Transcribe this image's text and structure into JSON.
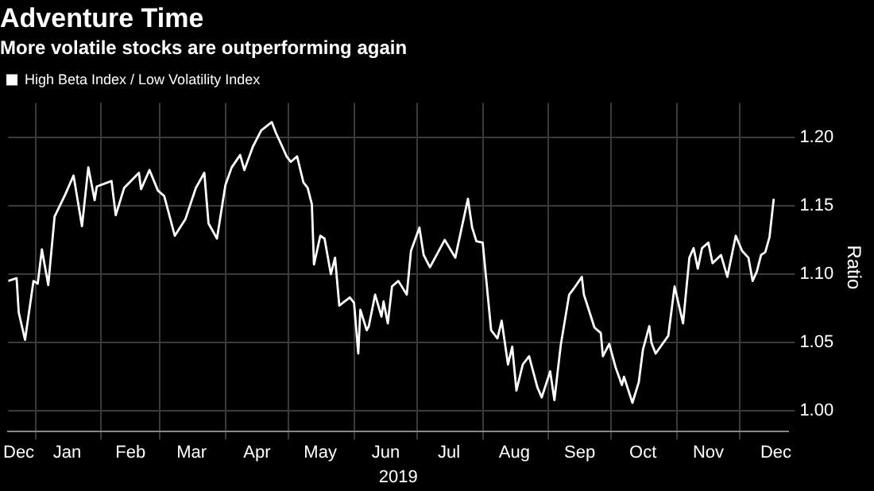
{
  "chart_data": {
    "type": "line",
    "title": "Adventure Time",
    "subtitle": "More volatile stocks are outperforming again",
    "xlabel": "2019",
    "ylabel": "Ratio",
    "xlim": [
      "2018-12-19",
      "2019-12-24"
    ],
    "xticks": [
      {
        "value": "2018-12-24",
        "label": "Dec"
      },
      {
        "value": "2019-01-01",
        "label": null
      },
      {
        "value": "2019-01-16",
        "label": "Jan"
      },
      {
        "value": "2019-02-01",
        "label": null
      },
      {
        "value": "2019-02-15",
        "label": "Feb"
      },
      {
        "value": "2019-03-01",
        "label": null
      },
      {
        "value": "2019-03-16",
        "label": "Mar"
      },
      {
        "value": "2019-04-01",
        "label": null
      },
      {
        "value": "2019-04-16",
        "label": "Apr"
      },
      {
        "value": "2019-05-01",
        "label": null
      },
      {
        "value": "2019-05-16",
        "label": "May"
      },
      {
        "value": "2019-06-01",
        "label": null
      },
      {
        "value": "2019-06-16",
        "label": "Jun"
      },
      {
        "value": "2019-07-01",
        "label": null
      },
      {
        "value": "2019-07-16",
        "label": "Jul"
      },
      {
        "value": "2019-08-01",
        "label": null
      },
      {
        "value": "2019-08-16",
        "label": "Aug"
      },
      {
        "value": "2019-09-01",
        "label": null
      },
      {
        "value": "2019-09-16",
        "label": "Sep"
      },
      {
        "value": "2019-10-01",
        "label": null
      },
      {
        "value": "2019-10-16",
        "label": "Oct"
      },
      {
        "value": "2019-11-01",
        "label": null
      },
      {
        "value": "2019-11-16",
        "label": "Nov"
      },
      {
        "value": "2019-12-01",
        "label": null
      },
      {
        "value": "2019-12-18",
        "label": "Dec"
      }
    ],
    "ylim": [
      0.985,
      1.225
    ],
    "yticks": [
      {
        "value": 1,
        "label": "1.00"
      },
      {
        "value": 1.05,
        "label": "1.05"
      },
      {
        "value": 1.1,
        "label": "1.10"
      },
      {
        "value": 1.15,
        "label": "1.15"
      },
      {
        "value": 1.2,
        "label": "1.20"
      }
    ],
    "grid": true,
    "legend": "top left",
    "series": [
      {
        "name": "High Beta Index / Low Volatility Index",
        "color": "#ffffff",
        "x": [
          "2018-12-19",
          "2018-12-23",
          "2018-12-24",
          "2018-12-27",
          "2018-12-31",
          "2019-01-02",
          "2019-01-04",
          "2019-01-07",
          "2019-01-10",
          "2019-01-15",
          "2019-01-19",
          "2019-01-23",
          "2019-01-26",
          "2019-01-29",
          "2019-01-30",
          "2019-02-06",
          "2019-02-08",
          "2019-02-12",
          "2019-02-19",
          "2019-02-20",
          "2019-02-24",
          "2019-02-28",
          "2019-03-03",
          "2019-03-08",
          "2019-03-13",
          "2019-03-18",
          "2019-03-22",
          "2019-03-24",
          "2019-03-28",
          "2019-04-01",
          "2019-04-04",
          "2019-04-08",
          "2019-04-10",
          "2019-04-14",
          "2019-04-18",
          "2019-04-23",
          "2019-04-25",
          "2019-04-28",
          "2019-04-30",
          "2019-05-02",
          "2019-05-05",
          "2019-05-08",
          "2019-05-10",
          "2019-05-12",
          "2019-05-13",
          "2019-05-16",
          "2019-05-18",
          "2019-05-21",
          "2019-05-23",
          "2019-05-25",
          "2019-05-30",
          "2019-06-01",
          "2019-06-03",
          "2019-06-04",
          "2019-06-07",
          "2019-06-08",
          "2019-06-11",
          "2019-06-14",
          "2019-06-15",
          "2019-06-17",
          "2019-06-19",
          "2019-06-22",
          "2019-06-26",
          "2019-06-28",
          "2019-07-02",
          "2019-07-04",
          "2019-07-07",
          "2019-07-14",
          "2019-07-19",
          "2019-07-25",
          "2019-07-27",
          "2019-07-29",
          "2019-08-01",
          "2019-08-05",
          "2019-08-08",
          "2019-08-10",
          "2019-08-13",
          "2019-08-15",
          "2019-08-17",
          "2019-08-20",
          "2019-08-23",
          "2019-08-27",
          "2019-08-29",
          "2019-09-02",
          "2019-09-04",
          "2019-09-07",
          "2019-09-11",
          "2019-09-13",
          "2019-09-17",
          "2019-09-18",
          "2019-09-23",
          "2019-09-26",
          "2019-09-27",
          "2019-09-30",
          "2019-10-03",
          "2019-10-06",
          "2019-10-07",
          "2019-10-11",
          "2019-10-14",
          "2019-10-16",
          "2019-10-19",
          "2019-10-20",
          "2019-10-22",
          "2019-10-28",
          "2019-10-31",
          "2019-11-04",
          "2019-11-07",
          "2019-11-09",
          "2019-11-11",
          "2019-11-13",
          "2019-11-16",
          "2019-11-18",
          "2019-11-22",
          "2019-11-25",
          "2019-11-29",
          "2019-12-02",
          "2019-12-05",
          "2019-12-07",
          "2019-12-09",
          "2019-12-11",
          "2019-12-13",
          "2019-12-15",
          "2019-12-17"
        ],
        "values": [
          1.095,
          1.097,
          1.072,
          1.052,
          1.095,
          1.093,
          1.118,
          1.092,
          1.142,
          1.158,
          1.172,
          1.135,
          1.178,
          1.154,
          1.164,
          1.168,
          1.143,
          1.163,
          1.174,
          1.162,
          1.176,
          1.161,
          1.157,
          1.128,
          1.14,
          1.163,
          1.174,
          1.137,
          1.126,
          1.165,
          1.178,
          1.187,
          1.176,
          1.193,
          1.205,
          1.211,
          1.203,
          1.193,
          1.186,
          1.182,
          1.186,
          1.167,
          1.163,
          1.151,
          1.107,
          1.128,
          1.126,
          1.1,
          1.112,
          1.077,
          1.083,
          1.079,
          1.042,
          1.074,
          1.059,
          1.062,
          1.085,
          1.069,
          1.08,
          1.064,
          1.091,
          1.095,
          1.085,
          1.117,
          1.134,
          1.114,
          1.105,
          1.125,
          1.112,
          1.155,
          1.134,
          1.124,
          1.123,
          1.059,
          1.053,
          1.066,
          1.034,
          1.047,
          1.015,
          1.034,
          1.04,
          1.017,
          1.01,
          1.029,
          1.008,
          1.048,
          1.085,
          1.089,
          1.098,
          1.085,
          1.061,
          1.057,
          1.04,
          1.049,
          1.032,
          1.019,
          1.025,
          1.006,
          1.021,
          1.045,
          1.062,
          1.05,
          1.042,
          1.055,
          1.091,
          1.064,
          1.112,
          1.119,
          1.104,
          1.119,
          1.123,
          1.108,
          1.114,
          1.098,
          1.128,
          1.117,
          1.112,
          1.095,
          1.102,
          1.114,
          1.116,
          1.127,
          1.155
        ]
      }
    ]
  }
}
